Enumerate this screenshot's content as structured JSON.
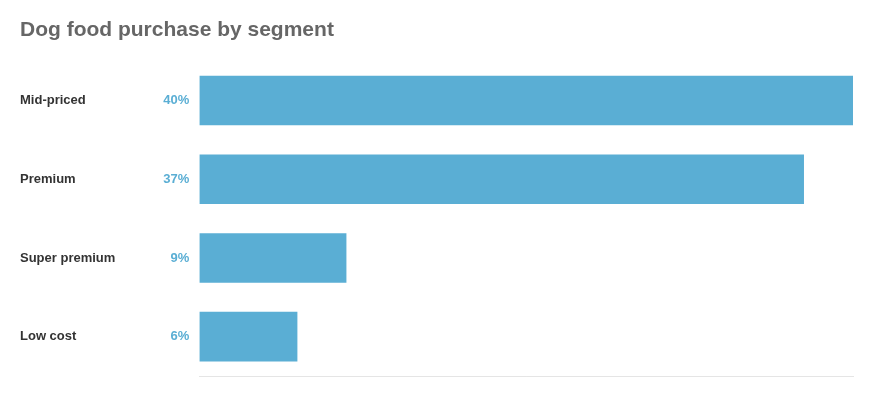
{
  "chart_data": {
    "type": "bar",
    "title": "Dog food purchase by segment",
    "orientation": "horizontal",
    "categories": [
      "Mid-priced",
      "Premium",
      "Super premium",
      "Low cost"
    ],
    "values": [
      40,
      37,
      9,
      6
    ],
    "value_labels": [
      "40%",
      "37%",
      "9%",
      "6%"
    ],
    "color": "#5aaed4",
    "xlim": [
      0,
      40
    ],
    "grid": false,
    "legend": false,
    "data_labels": true,
    "tick_labels": "y"
  }
}
